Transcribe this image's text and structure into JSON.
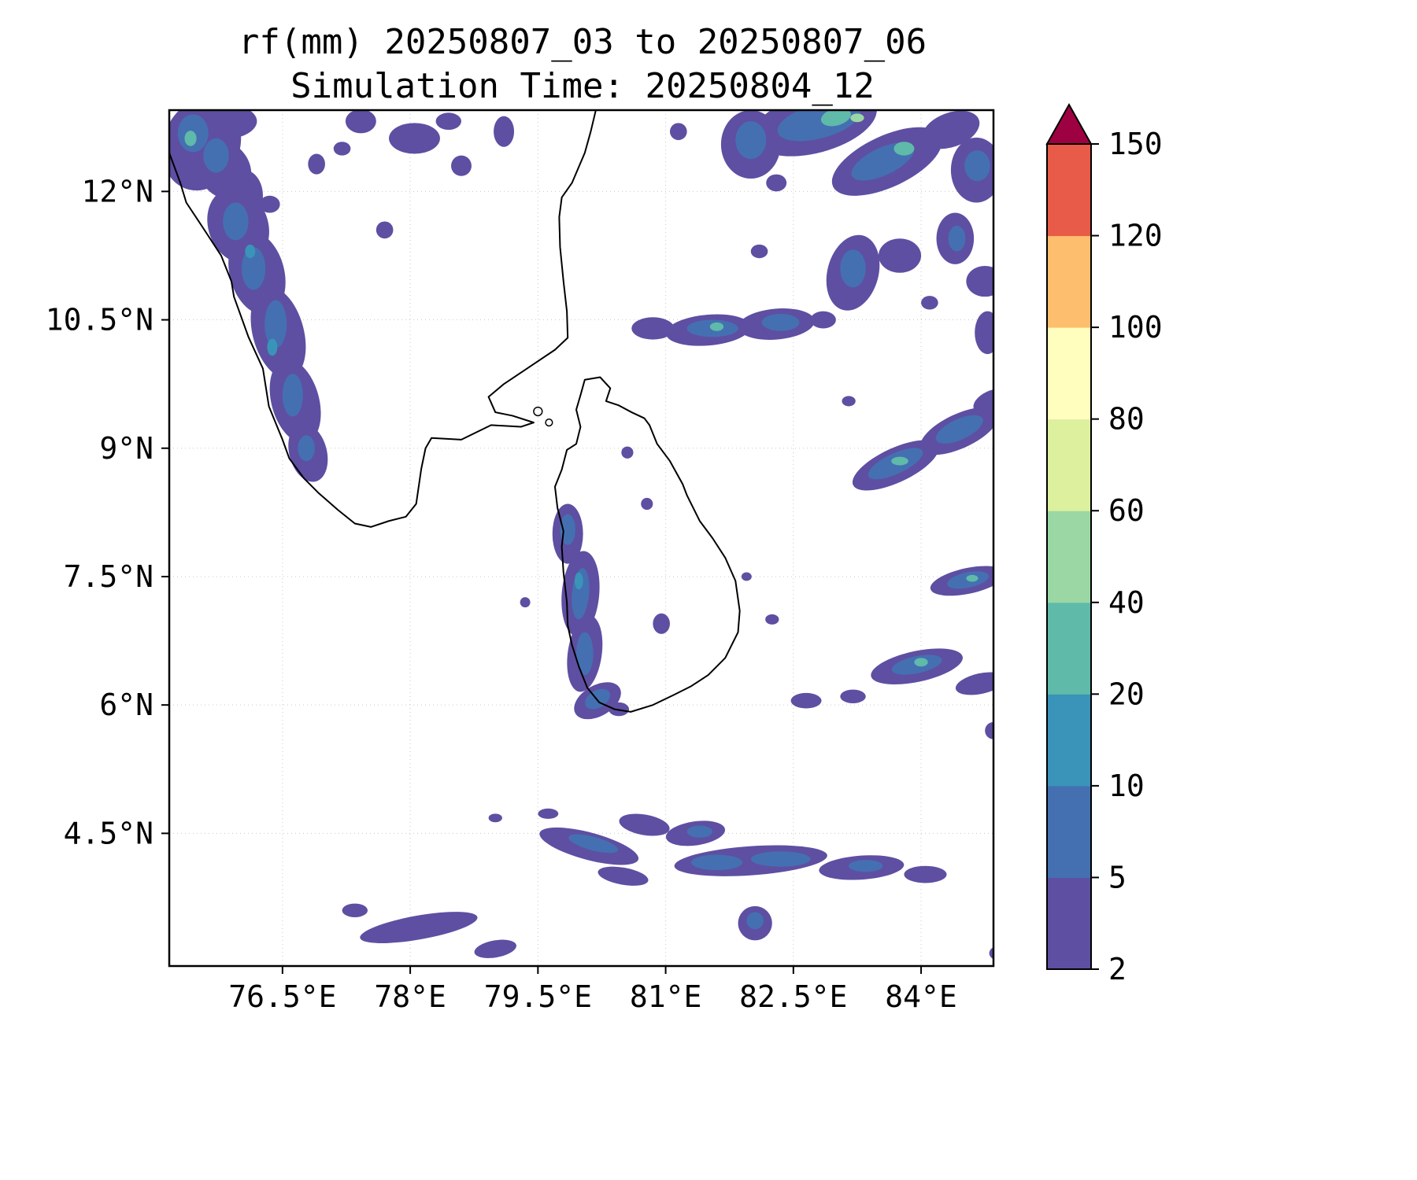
{
  "figure": {
    "title_line1": "rf(mm) 20250807_03 to 20250807_06",
    "title_line2": "Simulation Time: 20250804_12"
  },
  "chart_data": {
    "type": "heatmap",
    "title": "rf(mm) 20250807_03 to 20250807_06",
    "subtitle": "Simulation Time: 20250804_12",
    "variable": "rf",
    "units": "mm",
    "grid": true,
    "lon_range": [
      75.17,
      84.85
    ],
    "lat_range": [
      2.95,
      12.95
    ],
    "x_tick_values": [
      76.5,
      78,
      79.5,
      81,
      82.5,
      84
    ],
    "x_tick_labels": [
      "76.5°E",
      "78°E",
      "79.5°E",
      "81°E",
      "82.5°E",
      "84°E"
    ],
    "y_tick_values": [
      4.5,
      6,
      7.5,
      9,
      10.5,
      12
    ],
    "y_tick_labels": [
      "4.5°N",
      "6°N",
      "7.5°N",
      "9°N",
      "10.5°N",
      "12°N"
    ],
    "colorbar": {
      "levels": [
        2,
        5,
        10,
        20,
        40,
        60,
        80,
        100,
        120,
        150
      ],
      "segment_colors": [
        "#5e4fa2",
        "#4470b2",
        "#3a93b8",
        "#5fbaa9",
        "#9bd7a4",
        "#dcf09e",
        "#fffebe",
        "#fdbe6e",
        "#e85b48"
      ],
      "over_color": "#9e0142",
      "orientation": "vertical"
    },
    "coastlines": {
      "india": [
        [
          75.17,
          12.45
        ],
        [
          75.3,
          12.1
        ],
        [
          75.37,
          11.87
        ],
        [
          75.55,
          11.6
        ],
        [
          75.78,
          11.25
        ],
        [
          75.9,
          10.95
        ],
        [
          75.93,
          10.77
        ],
        [
          76.1,
          10.3
        ],
        [
          76.27,
          9.93
        ],
        [
          76.34,
          9.49
        ],
        [
          76.5,
          9.1
        ],
        [
          76.58,
          8.88
        ],
        [
          76.75,
          8.65
        ],
        [
          76.92,
          8.48
        ],
        [
          77.15,
          8.28
        ],
        [
          77.35,
          8.12
        ],
        [
          77.54,
          8.08
        ],
        [
          77.75,
          8.15
        ],
        [
          77.95,
          8.2
        ],
        [
          78.07,
          8.35
        ],
        [
          78.13,
          8.76
        ],
        [
          78.18,
          9.0
        ],
        [
          78.25,
          9.12
        ],
        [
          78.6,
          9.1
        ],
        [
          78.95,
          9.27
        ],
        [
          79.3,
          9.25
        ],
        [
          79.45,
          9.3
        ],
        [
          79.2,
          9.38
        ],
        [
          79.0,
          9.42
        ],
        [
          78.92,
          9.6
        ],
        [
          79.1,
          9.75
        ],
        [
          79.4,
          9.95
        ],
        [
          79.7,
          10.15
        ],
        [
          79.85,
          10.29
        ],
        [
          79.84,
          10.6
        ],
        [
          79.8,
          10.95
        ],
        [
          79.76,
          11.35
        ],
        [
          79.75,
          11.7
        ],
        [
          79.78,
          11.93
        ],
        [
          79.9,
          12.1
        ],
        [
          80.05,
          12.45
        ],
        [
          80.12,
          12.7
        ],
        [
          80.18,
          12.95
        ]
      ],
      "sri_lanka": [
        [
          80.05,
          9.8
        ],
        [
          80.23,
          9.83
        ],
        [
          80.35,
          9.7
        ],
        [
          80.3,
          9.55
        ],
        [
          80.45,
          9.5
        ],
        [
          80.6,
          9.42
        ],
        [
          80.75,
          9.35
        ],
        [
          80.81,
          9.27
        ],
        [
          80.9,
          9.05
        ],
        [
          81.05,
          8.85
        ],
        [
          81.2,
          8.58
        ],
        [
          81.25,
          8.45
        ],
        [
          81.4,
          8.15
        ],
        [
          81.55,
          7.95
        ],
        [
          81.7,
          7.72
        ],
        [
          81.82,
          7.45
        ],
        [
          81.87,
          7.1
        ],
        [
          81.85,
          6.85
        ],
        [
          81.7,
          6.55
        ],
        [
          81.5,
          6.35
        ],
        [
          81.3,
          6.22
        ],
        [
          81.1,
          6.12
        ],
        [
          80.85,
          6.0
        ],
        [
          80.59,
          5.92
        ],
        [
          80.4,
          5.95
        ],
        [
          80.22,
          6.03
        ],
        [
          80.08,
          6.2
        ],
        [
          79.98,
          6.45
        ],
        [
          79.9,
          6.7
        ],
        [
          79.85,
          6.93
        ],
        [
          79.84,
          7.2
        ],
        [
          79.8,
          7.55
        ],
        [
          79.78,
          7.85
        ],
        [
          79.8,
          8.03
        ],
        [
          79.73,
          8.3
        ],
        [
          79.7,
          8.55
        ],
        [
          79.78,
          8.75
        ],
        [
          79.84,
          8.98
        ],
        [
          79.95,
          9.05
        ],
        [
          80.0,
          9.25
        ],
        [
          79.95,
          9.45
        ],
        [
          80.0,
          9.62
        ],
        [
          80.05,
          9.8
        ]
      ],
      "islets": [
        [
          79.5,
          9.43,
          0.05
        ],
        [
          79.63,
          9.3,
          0.04
        ]
      ]
    },
    "patches_format": "[lon, lat, rx_deg, ry_deg, rotation_deg, level_index] level_index maps into colorbar.segment_colors (0 = 2-5mm)",
    "rain_patches": [
      [
        75.55,
        12.55,
        0.45,
        0.55,
        20,
        0
      ],
      [
        75.75,
        12.82,
        0.45,
        0.22,
        0,
        0
      ],
      [
        75.45,
        12.68,
        0.18,
        0.22,
        0,
        1
      ],
      [
        75.42,
        12.62,
        0.07,
        0.09,
        0,
        3
      ],
      [
        75.82,
        12.25,
        0.3,
        0.35,
        -30,
        0
      ],
      [
        75.72,
        12.42,
        0.15,
        0.2,
        0,
        1
      ],
      [
        76.05,
        11.95,
        0.22,
        0.3,
        0,
        0
      ],
      [
        75.98,
        11.6,
        0.35,
        0.45,
        -20,
        0
      ],
      [
        75.95,
        11.65,
        0.15,
        0.22,
        0,
        1
      ],
      [
        76.2,
        11.05,
        0.32,
        0.5,
        -15,
        0
      ],
      [
        76.16,
        11.1,
        0.14,
        0.25,
        0,
        1
      ],
      [
        76.12,
        11.3,
        0.06,
        0.08,
        0,
        2
      ],
      [
        76.45,
        10.35,
        0.3,
        0.55,
        -15,
        0
      ],
      [
        76.42,
        10.45,
        0.13,
        0.28,
        0,
        1
      ],
      [
        76.38,
        10.18,
        0.06,
        0.1,
        0,
        2
      ],
      [
        76.65,
        9.55,
        0.28,
        0.5,
        -15,
        0
      ],
      [
        76.62,
        9.62,
        0.12,
        0.25,
        0,
        1
      ],
      [
        76.8,
        8.95,
        0.22,
        0.35,
        -15,
        0
      ],
      [
        76.78,
        9.0,
        0.1,
        0.15,
        0,
        1
      ],
      [
        76.35,
        11.85,
        0.12,
        0.1,
        0,
        0
      ],
      [
        76.9,
        12.32,
        0.1,
        0.12,
        0,
        0
      ],
      [
        77.42,
        12.82,
        0.18,
        0.14,
        0,
        0
      ],
      [
        77.2,
        12.5,
        0.1,
        0.08,
        0,
        0
      ],
      [
        78.05,
        12.62,
        0.3,
        0.18,
        0,
        0
      ],
      [
        78.45,
        12.82,
        0.15,
        0.1,
        0,
        0
      ],
      [
        78.6,
        12.3,
        0.12,
        0.12,
        0,
        0
      ],
      [
        79.1,
        12.7,
        0.12,
        0.18,
        0,
        0
      ],
      [
        77.7,
        11.55,
        0.1,
        0.1,
        0,
        0
      ],
      [
        82.0,
        12.55,
        0.35,
        0.4,
        0,
        0
      ],
      [
        82.0,
        12.6,
        0.18,
        0.22,
        0,
        1
      ],
      [
        82.75,
        12.8,
        0.75,
        0.35,
        -15,
        0
      ],
      [
        82.8,
        12.82,
        0.5,
        0.2,
        -15,
        1
      ],
      [
        83.0,
        12.87,
        0.18,
        0.1,
        -15,
        3
      ],
      [
        83.25,
        12.86,
        0.08,
        0.05,
        0,
        4
      ],
      [
        83.6,
        12.35,
        0.7,
        0.3,
        -25,
        0
      ],
      [
        83.55,
        12.35,
        0.4,
        0.16,
        -25,
        1
      ],
      [
        83.8,
        12.5,
        0.12,
        0.08,
        0,
        3
      ],
      [
        84.35,
        12.72,
        0.35,
        0.2,
        -20,
        0
      ],
      [
        84.65,
        12.25,
        0.3,
        0.38,
        0,
        0
      ],
      [
        84.66,
        12.3,
        0.15,
        0.18,
        0,
        1
      ],
      [
        81.15,
        12.7,
        0.1,
        0.1,
        0,
        0
      ],
      [
        82.3,
        12.1,
        0.12,
        0.1,
        0,
        0
      ],
      [
        83.2,
        11.05,
        0.3,
        0.45,
        15,
        0
      ],
      [
        83.2,
        11.1,
        0.15,
        0.22,
        0,
        1
      ],
      [
        83.75,
        11.25,
        0.25,
        0.2,
        0,
        0
      ],
      [
        84.4,
        11.45,
        0.22,
        0.3,
        0,
        0
      ],
      [
        84.42,
        11.45,
        0.1,
        0.15,
        0,
        1
      ],
      [
        84.75,
        10.95,
        0.22,
        0.18,
        0,
        0
      ],
      [
        84.78,
        10.35,
        0.15,
        0.25,
        0,
        0
      ],
      [
        84.1,
        10.7,
        0.1,
        0.08,
        0,
        0
      ],
      [
        80.85,
        10.4,
        0.25,
        0.13,
        0,
        0
      ],
      [
        81.5,
        10.38,
        0.5,
        0.18,
        -5,
        0
      ],
      [
        81.55,
        10.4,
        0.3,
        0.1,
        0,
        1
      ],
      [
        81.6,
        10.42,
        0.08,
        0.05,
        0,
        3
      ],
      [
        82.3,
        10.45,
        0.45,
        0.18,
        -5,
        0
      ],
      [
        82.35,
        10.47,
        0.22,
        0.1,
        0,
        1
      ],
      [
        82.85,
        10.5,
        0.15,
        0.1,
        0,
        0
      ],
      [
        82.1,
        11.3,
        0.1,
        0.08,
        0,
        0
      ],
      [
        83.7,
        8.8,
        0.55,
        0.2,
        -25,
        0
      ],
      [
        83.7,
        8.82,
        0.35,
        0.12,
        -25,
        1
      ],
      [
        83.75,
        8.85,
        0.1,
        0.05,
        0,
        3
      ],
      [
        84.45,
        9.2,
        0.5,
        0.2,
        -25,
        0
      ],
      [
        84.45,
        9.22,
        0.3,
        0.12,
        -25,
        1
      ],
      [
        84.82,
        9.55,
        0.22,
        0.12,
        -25,
        0
      ],
      [
        83.15,
        9.55,
        0.08,
        0.06,
        0,
        0
      ],
      [
        84.55,
        7.45,
        0.45,
        0.15,
        -12,
        0
      ],
      [
        84.55,
        7.46,
        0.25,
        0.09,
        -12,
        1
      ],
      [
        84.6,
        7.48,
        0.07,
        0.04,
        0,
        3
      ],
      [
        83.95,
        6.45,
        0.55,
        0.18,
        -12,
        0
      ],
      [
        83.95,
        6.47,
        0.3,
        0.1,
        -12,
        1
      ],
      [
        84.0,
        6.5,
        0.08,
        0.05,
        0,
        3
      ],
      [
        84.7,
        6.25,
        0.3,
        0.12,
        -12,
        0
      ],
      [
        83.2,
        6.1,
        0.15,
        0.08,
        0,
        0
      ],
      [
        82.65,
        6.05,
        0.18,
        0.09,
        0,
        0
      ],
      [
        84.85,
        5.7,
        0.1,
        0.1,
        0,
        0
      ],
      [
        82.25,
        7.0,
        0.08,
        0.06,
        0,
        0
      ],
      [
        81.95,
        7.5,
        0.06,
        0.05,
        0,
        0
      ],
      [
        79.85,
        8.0,
        0.18,
        0.35,
        0,
        0
      ],
      [
        79.85,
        8.05,
        0.09,
        0.18,
        0,
        1
      ],
      [
        80.0,
        7.3,
        0.22,
        0.5,
        5,
        0
      ],
      [
        80.0,
        7.3,
        0.1,
        0.3,
        5,
        1
      ],
      [
        79.98,
        7.45,
        0.05,
        0.1,
        0,
        2
      ],
      [
        80.05,
        6.6,
        0.2,
        0.45,
        8,
        0
      ],
      [
        80.05,
        6.6,
        0.1,
        0.25,
        0,
        1
      ],
      [
        80.2,
        6.05,
        0.3,
        0.18,
        -30,
        0
      ],
      [
        80.2,
        6.07,
        0.16,
        0.1,
        -30,
        1
      ],
      [
        80.45,
        5.95,
        0.12,
        0.08,
        0,
        0
      ],
      [
        80.55,
        8.95,
        0.07,
        0.07,
        0,
        0
      ],
      [
        80.78,
        8.35,
        0.07,
        0.07,
        0,
        0
      ],
      [
        80.95,
        6.95,
        0.1,
        0.12,
        0,
        0
      ],
      [
        79.35,
        7.2,
        0.06,
        0.06,
        0,
        0
      ],
      [
        79.62,
        4.73,
        0.12,
        0.06,
        0,
        0
      ],
      [
        79.0,
        4.68,
        0.08,
        0.05,
        0,
        0
      ],
      [
        80.1,
        4.35,
        0.6,
        0.16,
        15,
        0
      ],
      [
        80.15,
        4.38,
        0.3,
        0.08,
        15,
        1
      ],
      [
        80.75,
        4.6,
        0.3,
        0.12,
        10,
        0
      ],
      [
        81.35,
        4.5,
        0.35,
        0.14,
        -8,
        0
      ],
      [
        81.4,
        4.52,
        0.15,
        0.07,
        0,
        1
      ],
      [
        82.0,
        4.18,
        0.9,
        0.17,
        -4,
        0
      ],
      [
        81.6,
        4.16,
        0.3,
        0.09,
        0,
        1
      ],
      [
        82.35,
        4.2,
        0.35,
        0.09,
        0,
        1
      ],
      [
        83.3,
        4.1,
        0.5,
        0.14,
        -4,
        0
      ],
      [
        83.35,
        4.12,
        0.2,
        0.07,
        0,
        1
      ],
      [
        84.05,
        4.02,
        0.25,
        0.1,
        0,
        0
      ],
      [
        80.5,
        4.0,
        0.3,
        0.1,
        10,
        0
      ],
      [
        78.1,
        3.4,
        0.7,
        0.14,
        -10,
        0
      ],
      [
        77.35,
        3.6,
        0.15,
        0.08,
        0,
        0
      ],
      [
        79.0,
        3.15,
        0.25,
        0.1,
        -10,
        0
      ],
      [
        82.05,
        3.45,
        0.2,
        0.2,
        0,
        0
      ],
      [
        82.05,
        3.48,
        0.1,
        0.1,
        0,
        1
      ],
      [
        84.9,
        3.1,
        0.1,
        0.08,
        0,
        0
      ]
    ]
  }
}
